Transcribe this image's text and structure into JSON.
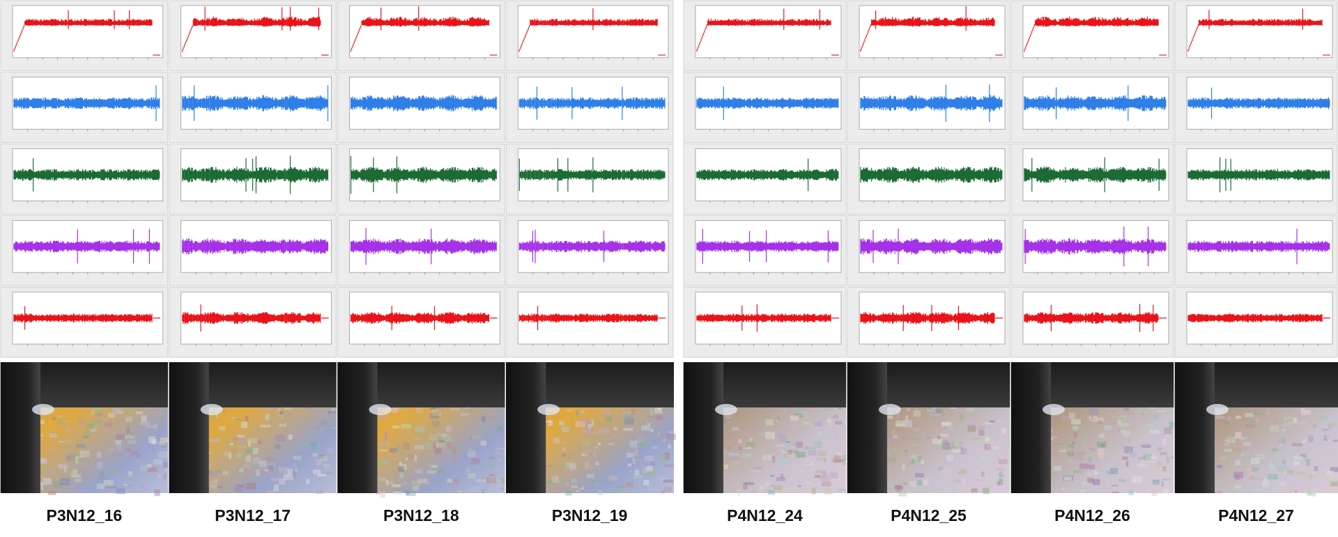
{
  "groups": [
    {
      "labels": [
        "P3N12_16",
        "P3N12_17",
        "P3N12_18",
        "P3N12_19"
      ]
    },
    {
      "labels": [
        "P4N12_24",
        "P4N12_25",
        "P4N12_26",
        "P4N12_27"
      ]
    }
  ]
}
